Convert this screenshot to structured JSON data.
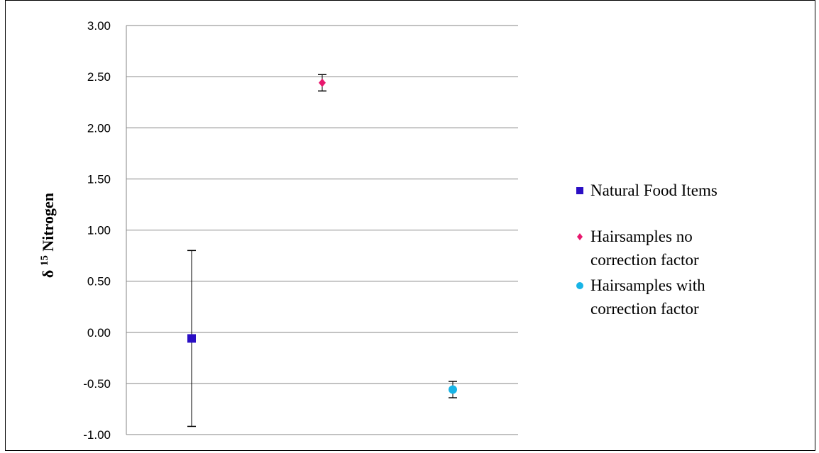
{
  "chart_data": {
    "type": "scatter",
    "title": "",
    "xlabel": "",
    "ylabel": {
      "prefix": "δ",
      "sup": "15",
      "suffix": "Nitrogen"
    },
    "ylim": [
      -1.0,
      3.0
    ],
    "y_ticks": [
      "3.00",
      "2.50",
      "2.00",
      "1.50",
      "1.00",
      "0.50",
      "0.00",
      "-0.50",
      "-1.00"
    ],
    "grid": true,
    "legend_position": "right",
    "series": [
      {
        "name": "Natural Food Items",
        "color": "#2a0ec4",
        "marker": "square",
        "x": 1,
        "y": -0.06,
        "err_low": -0.92,
        "err_high": 0.8
      },
      {
        "name": "Hairsamples no correction factor",
        "name_lines": [
          "Hairsamples no",
          "correction factor"
        ],
        "color": "#e8186e",
        "marker": "diamond",
        "x": 2,
        "y": 2.44,
        "err_low": 2.36,
        "err_high": 2.52
      },
      {
        "name": "Hairsamples with correction factor",
        "name_lines": [
          "Hairsamples with",
          "correction factor"
        ],
        "color": "#18b4e6",
        "marker": "circle",
        "x": 3,
        "y": -0.56,
        "err_low": -0.64,
        "err_high": -0.48
      }
    ]
  }
}
